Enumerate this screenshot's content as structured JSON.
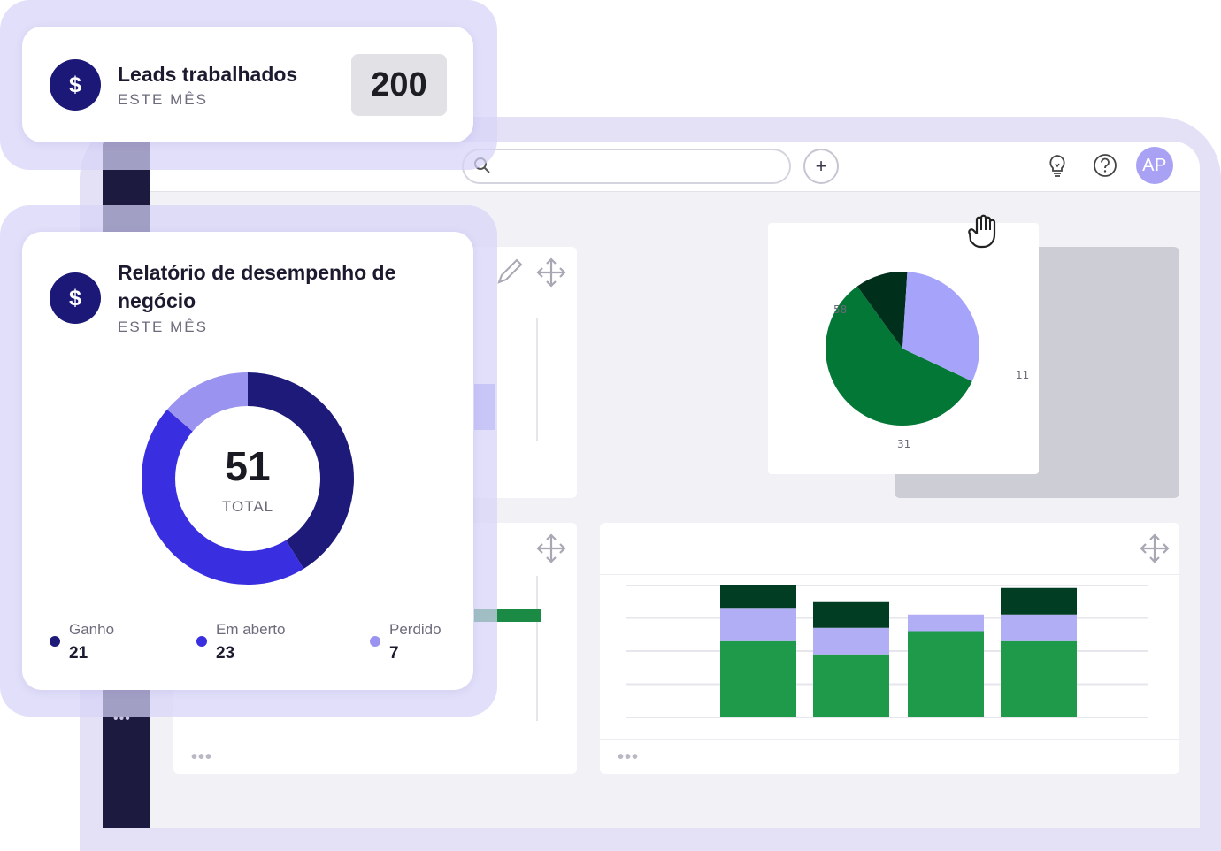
{
  "app": {
    "avatar_initials": "AP",
    "icons": [
      "search-icon",
      "plus-icon",
      "lightbulb-icon",
      "help-icon",
      "move-icon",
      "pencil-icon",
      "hand-icon",
      "more-icon"
    ]
  },
  "leads_card": {
    "title": "Leads trabalhados",
    "subtitle": "ESTE MÊS",
    "value": "200",
    "icon_symbol": "$"
  },
  "performance_card": {
    "title": "Relatório de desempenho de negócio",
    "subtitle": "ESTE MÊS",
    "icon_symbol": "$",
    "total_value": "51",
    "total_label": "TOTAL",
    "legend": [
      {
        "label": "Ganho",
        "value": "21",
        "color": "#1e1a7a"
      },
      {
        "label": "Em aberto",
        "value": "23",
        "color": "#3a2fe0"
      },
      {
        "label": "Perdido",
        "value": "7",
        "color": "#9a93ef"
      }
    ]
  },
  "more_label": "•••",
  "chart_data": [
    {
      "type": "pie",
      "title": "",
      "slices": [
        {
          "label": "Ganho",
          "value": 21,
          "color": "#1e1a7a"
        },
        {
          "label": "Em aberto",
          "value": 23,
          "color": "#3a2fe0"
        },
        {
          "label": "Perdido",
          "value": 7,
          "color": "#9a93ef"
        }
      ],
      "center_text": "51",
      "donut": true
    },
    {
      "type": "pie",
      "title": "",
      "slices": [
        {
          "label": "58",
          "value": 58,
          "color": "#037736"
        },
        {
          "label": "11",
          "value": 11,
          "color": "#002f1c"
        },
        {
          "label": "31",
          "value": 31,
          "color": "#a5a3fa"
        }
      ]
    },
    {
      "type": "bar",
      "stacked": true,
      "title": "",
      "categories": [
        "",
        "",
        "",
        ""
      ],
      "ylim": [
        0,
        4
      ],
      "grid": true,
      "series": [
        {
          "values": [
            2.3,
            1.9,
            2.6,
            2.3
          ],
          "color": "#1f9a4a"
        },
        {
          "values": [
            1.0,
            0.8,
            0.5,
            0.8
          ],
          "color": "#b1aef5"
        },
        {
          "values": [
            0.7,
            0.8,
            0.0,
            0.8
          ],
          "color": "#003d22"
        }
      ]
    }
  ]
}
